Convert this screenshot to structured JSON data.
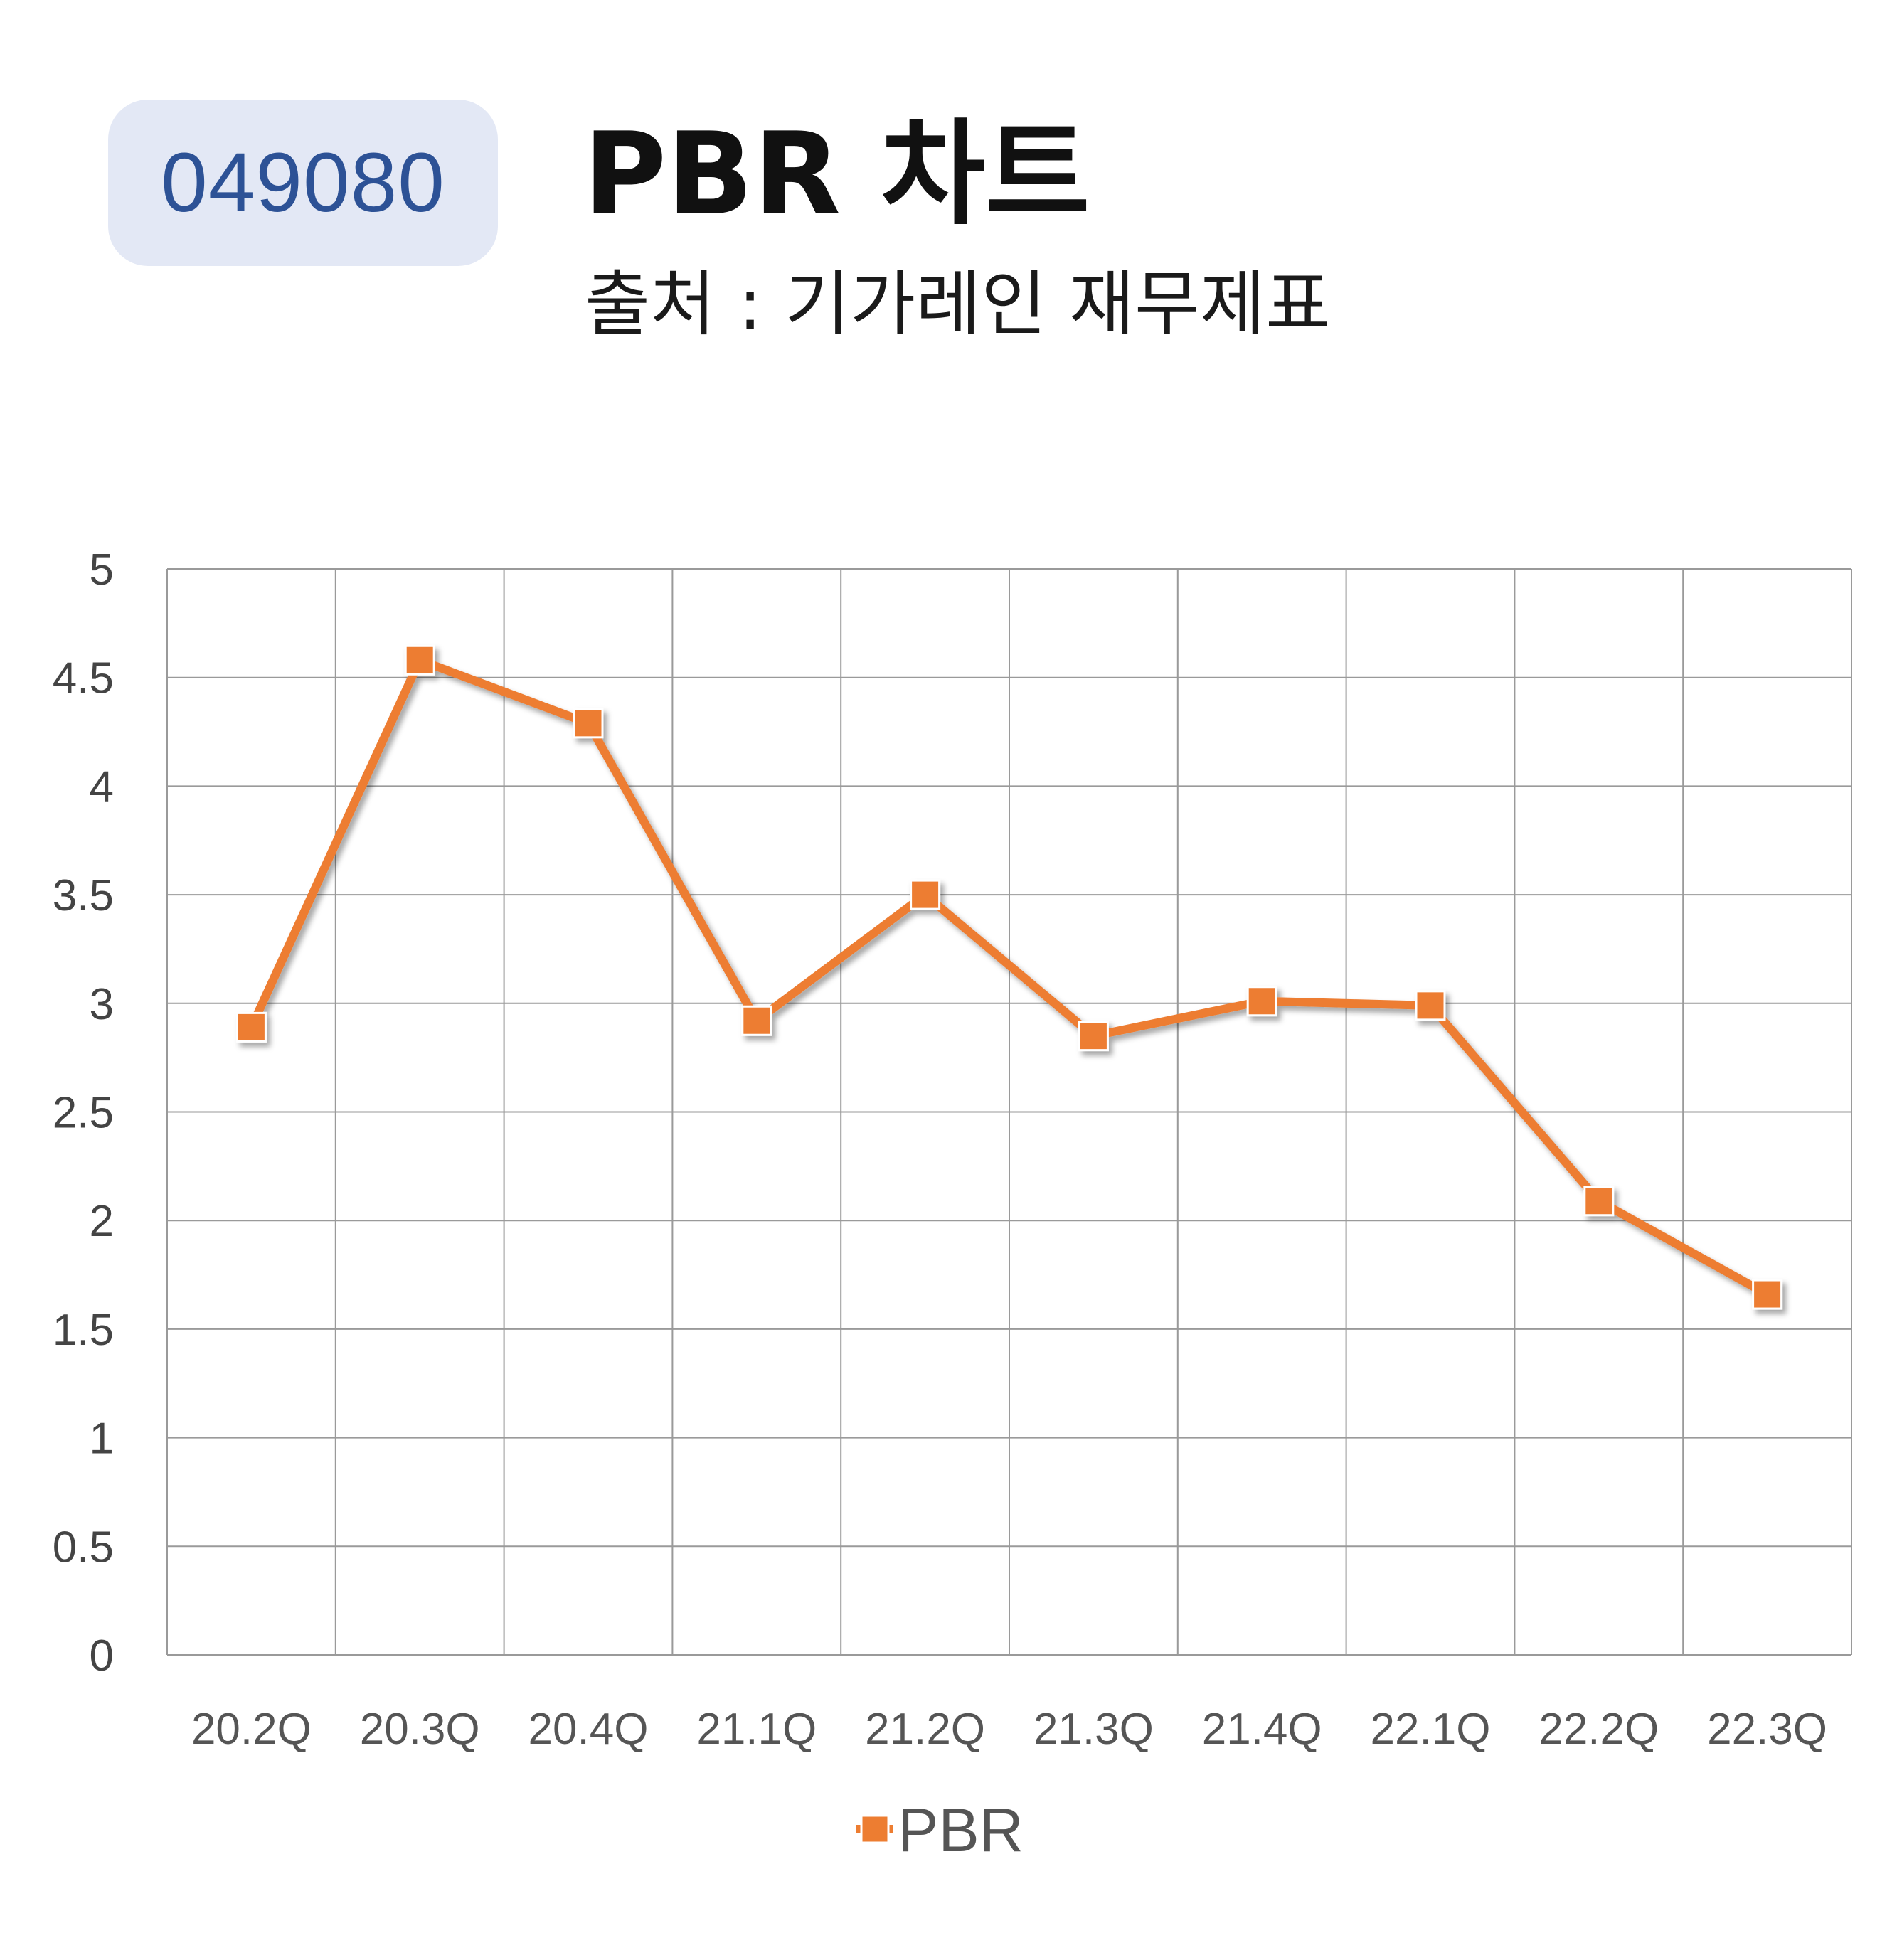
{
  "header": {
    "code": "049080",
    "title": "PBR 차트",
    "subtitle": "출처 : 기가레인 재무제표"
  },
  "colors": {
    "series": "#ed7d31",
    "badge_bg": "#e3e8f5",
    "badge_text": "#2d5296",
    "grid": "#9a9a9a"
  },
  "chart_data": {
    "type": "line",
    "categories": [
      "20.2Q",
      "20.3Q",
      "20.4Q",
      "21.1Q",
      "21.2Q",
      "21.3Q",
      "21.4Q",
      "22.1Q",
      "22.2Q",
      "22.3Q"
    ],
    "series": [
      {
        "name": "PBR",
        "values": [
          2.89,
          4.58,
          4.29,
          2.92,
          3.5,
          2.85,
          3.01,
          2.99,
          2.09,
          1.66
        ]
      }
    ],
    "ylim": [
      0,
      5
    ],
    "yticks": [
      "0",
      "0.5",
      "1",
      "1.5",
      "2",
      "2.5",
      "3",
      "3.5",
      "4",
      "4.5",
      "5"
    ],
    "grid": true,
    "legend": "bottom",
    "marker": "square"
  }
}
